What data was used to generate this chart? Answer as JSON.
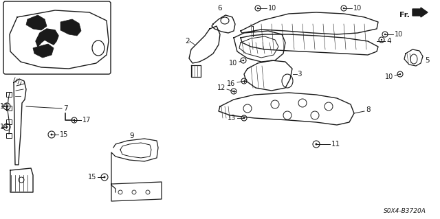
{
  "background_color": "#f5f5f5",
  "diagram_code": "S0X4-B3720A",
  "line_color": "#1a1a1a",
  "text_color": "#1a1a1a",
  "fig_width": 6.4,
  "fig_height": 3.19,
  "dpi": 100
}
